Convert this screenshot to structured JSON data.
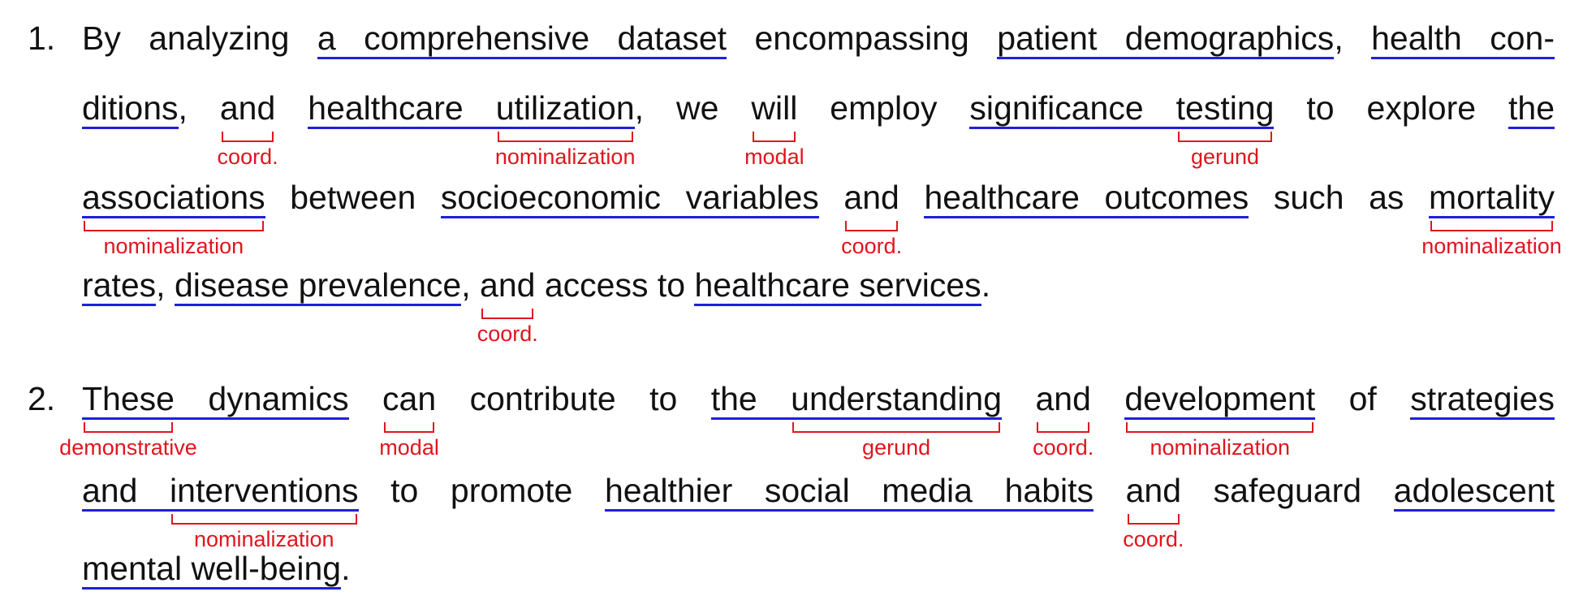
{
  "items": [
    {
      "number": "1.",
      "lines": [
        [
          {
            "text": "By analyzing "
          },
          {
            "text": "a comprehensive dataset",
            "underline": true
          },
          {
            "text": " encompassing "
          },
          {
            "text": "patient demographics",
            "underline": true
          },
          {
            "text": ", "
          },
          {
            "text": "health con-",
            "underline": true
          }
        ],
        [
          {
            "text": "ditions",
            "underline": true
          },
          {
            "text": ", "
          },
          {
            "text": "and",
            "tag": "coord."
          },
          {
            "text": " "
          },
          {
            "text": "healthcare ",
            "underline": true
          },
          {
            "text": "utilization",
            "underline": true,
            "tag": "nominalization"
          },
          {
            "text": ", we "
          },
          {
            "text": "will",
            "tag": "modal"
          },
          {
            "text": " employ "
          },
          {
            "text": "significance ",
            "underline": true
          },
          {
            "text": "testing",
            "underline": true,
            "tag": "gerund"
          },
          {
            "text": " to explore "
          },
          {
            "text": "the",
            "underline": true
          }
        ],
        [
          {
            "text": "associations",
            "underline": true,
            "tag": "nominalization"
          },
          {
            "text": " between "
          },
          {
            "text": "socioeconomic variables",
            "underline": true
          },
          {
            "text": " "
          },
          {
            "text": "and",
            "tag": "coord."
          },
          {
            "text": " "
          },
          {
            "text": "healthcare outcomes",
            "underline": true
          },
          {
            "text": " such as "
          },
          {
            "text": "mortality",
            "underline": true,
            "tag": "nominalization"
          }
        ],
        [
          {
            "text": "rates",
            "underline": true
          },
          {
            "text": ", "
          },
          {
            "text": "disease prevalence",
            "underline": true
          },
          {
            "text": ", "
          },
          {
            "text": "and",
            "tag": "coord."
          },
          {
            "text": " access to "
          },
          {
            "text": "healthcare services",
            "underline": true
          },
          {
            "text": "."
          }
        ]
      ]
    },
    {
      "number": "2.",
      "lines": [
        [
          {
            "text": "These",
            "underline": true,
            "tag": "demonstrative"
          },
          {
            "text": " dynamics",
            "underline": true
          },
          {
            "text": " "
          },
          {
            "text": "can",
            "tag": "modal"
          },
          {
            "text": " contribute to "
          },
          {
            "text": "the ",
            "underline": true
          },
          {
            "text": "understanding",
            "underline": true,
            "tag": "gerund"
          },
          {
            "text": " "
          },
          {
            "text": "and",
            "tag": "coord."
          },
          {
            "text": " "
          },
          {
            "text": "development",
            "underline": true,
            "tag": "nominalization"
          },
          {
            "text": " of "
          },
          {
            "text": "strategies",
            "underline": true
          }
        ],
        [
          {
            "text": "and ",
            "underline": true
          },
          {
            "text": "interventions",
            "underline": true,
            "tag": "nominalization"
          },
          {
            "text": " to promote "
          },
          {
            "text": "healthier social media habits",
            "underline": true
          },
          {
            "text": " "
          },
          {
            "text": "and",
            "tag": "coord."
          },
          {
            "text": " safeguard "
          },
          {
            "text": "adolescent",
            "underline": true
          }
        ],
        [
          {
            "text": "mental well-being",
            "underline": true
          },
          {
            "text": "."
          }
        ]
      ]
    }
  ]
}
